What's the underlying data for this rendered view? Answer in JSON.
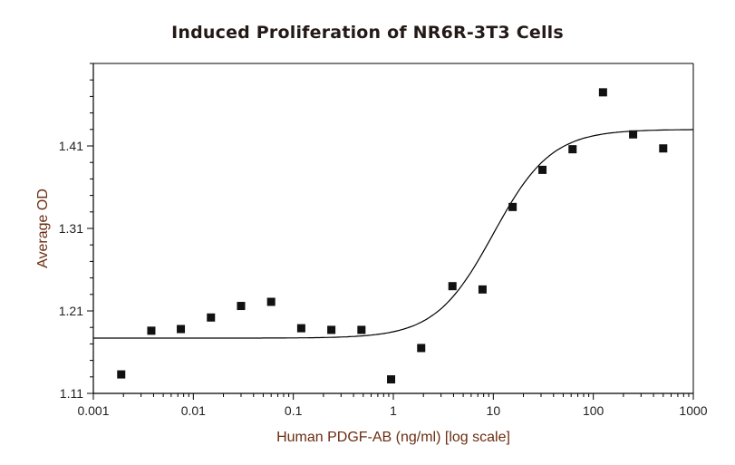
{
  "chart_data": {
    "type": "scatter",
    "title": "Induced Proliferation of NR6R-3T3 Cells",
    "xlabel": "Human PDGF-AB (ng/ml) [log scale]",
    "ylabel": "Average OD",
    "xscale": "log",
    "xlim": [
      0.001,
      1000
    ],
    "ylim": [
      1.11,
      1.51
    ],
    "x_ticks": [
      "0.001",
      "0.01",
      "0.1",
      "1",
      "10",
      "100",
      "1000"
    ],
    "y_ticks": [
      "1.11",
      "1.21",
      "1.31",
      "1.41"
    ],
    "grid": false,
    "legend": "none",
    "marker_color": "#111111",
    "fit_curve": {
      "type": "4PL sigmoid",
      "bottom": 1.177,
      "top": 1.43,
      "ec50": 10,
      "hill": 1.5
    },
    "series": [
      {
        "x": [
          0.0019,
          0.0038,
          0.0075,
          0.015,
          0.03,
          0.06,
          0.12,
          0.24,
          0.48,
          0.95,
          1.9,
          3.9,
          7.8,
          15.6,
          31,
          62,
          125,
          250,
          500
        ],
        "y": [
          1.133,
          1.186,
          1.188,
          1.202,
          1.216,
          1.221,
          1.189,
          1.187,
          1.187,
          1.127,
          1.165,
          1.24,
          1.236,
          1.336,
          1.381,
          1.406,
          1.475,
          1.424,
          1.407
        ]
      }
    ]
  }
}
